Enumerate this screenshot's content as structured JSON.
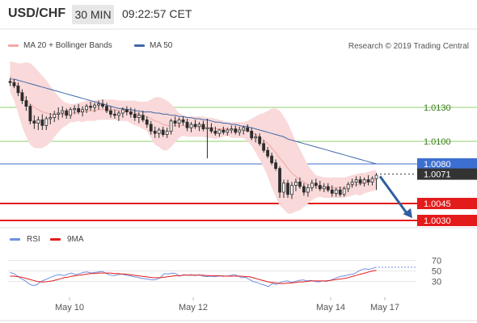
{
  "header": {
    "symbol": "USD/CHF",
    "timeframe": "30 MIN",
    "time": "09:22:57 CET"
  },
  "legend": {
    "ma20_label": "MA 20 + Bollinger Bands",
    "ma50_label": "MA 50",
    "source": "Research © 2019 Trading Central"
  },
  "rsi_legend": {
    "rsi_label": "RSI",
    "ma_label": "9MA"
  },
  "colors": {
    "bollinger_fill": "#f9d9d9",
    "ma20": "#f1a7a7",
    "ma50": "#3f69a8",
    "candle": "#2d2d2d",
    "support": "#e41b1b",
    "current_price": "#333333",
    "pivot": "#3d6fd2",
    "resistance": "#92cf6d",
    "forecast_arrow": "#2f5f9e",
    "rsi": "#6f8fe0",
    "rsi_ma": "#e41b1b"
  },
  "chart_data": [
    {
      "type": "candlestick",
      "title": "USD/CHF 30 MIN",
      "x_labels": [
        "May 10",
        "May 12",
        "May 14",
        "May 17"
      ],
      "y_range": [
        1.0025,
        1.0175
      ],
      "levels": [
        {
          "value": 1.013,
          "label": "1.0130",
          "kind": "resistance"
        },
        {
          "value": 1.01,
          "label": "1.0100",
          "kind": "resistance"
        },
        {
          "value": 1.008,
          "label": "1.0080",
          "kind": "pivot"
        },
        {
          "value": 1.0071,
          "label": "1.0071",
          "kind": "current"
        },
        {
          "value": 1.0045,
          "label": "1.0045",
          "kind": "support"
        },
        {
          "value": 1.003,
          "label": "1.0030",
          "kind": "support"
        }
      ],
      "forecast_arrow": {
        "from": 1.0069,
        "to": 1.0032
      },
      "candles": [
        [
          1.0153,
          1.0156,
          1.0149,
          1.0152
        ],
        [
          1.0152,
          1.0155,
          1.0147,
          1.0149
        ],
        [
          1.0149,
          1.0152,
          1.014,
          1.0143
        ],
        [
          1.0143,
          1.0146,
          1.0133,
          1.0136
        ],
        [
          1.0136,
          1.014,
          1.0127,
          1.0131
        ],
        [
          1.0131,
          1.0133,
          1.0115,
          1.0118
        ],
        [
          1.0118,
          1.0123,
          1.0111,
          1.0116
        ],
        [
          1.0116,
          1.0122,
          1.011,
          1.0119
        ],
        [
          1.0119,
          1.0124,
          1.011,
          1.0114
        ],
        [
          1.0114,
          1.0122,
          1.011,
          1.012
        ],
        [
          1.012,
          1.0125,
          1.0115,
          1.0121
        ],
        [
          1.0121,
          1.0127,
          1.0117,
          1.0124
        ],
        [
          1.0124,
          1.013,
          1.0119,
          1.0125
        ],
        [
          1.0125,
          1.0131,
          1.0121,
          1.0127
        ],
        [
          1.0127,
          1.0129,
          1.012,
          1.0123
        ],
        [
          1.0123,
          1.013,
          1.012,
          1.0128
        ],
        [
          1.0128,
          1.0132,
          1.0124,
          1.0129
        ],
        [
          1.0129,
          1.0133,
          1.0124,
          1.0126
        ],
        [
          1.0126,
          1.0131,
          1.0122,
          1.0128
        ],
        [
          1.0128,
          1.0133,
          1.0125,
          1.0131
        ],
        [
          1.0131,
          1.0135,
          1.0127,
          1.013
        ],
        [
          1.013,
          1.0134,
          1.0126,
          1.0132
        ],
        [
          1.0132,
          1.0136,
          1.0128,
          1.0133
        ],
        [
          1.0133,
          1.0137,
          1.0129,
          1.0131
        ],
        [
          1.0131,
          1.0134,
          1.0125,
          1.0127
        ],
        [
          1.0127,
          1.0131,
          1.0121,
          1.0124
        ],
        [
          1.0124,
          1.0128,
          1.012,
          1.0123
        ],
        [
          1.0123,
          1.0127,
          1.0118,
          1.0125
        ],
        [
          1.0125,
          1.013,
          1.0121,
          1.0128
        ],
        [
          1.0128,
          1.0131,
          1.0123,
          1.0126
        ],
        [
          1.0126,
          1.013,
          1.0121,
          1.0124
        ],
        [
          1.0124,
          1.0129,
          1.0118,
          1.0121
        ],
        [
          1.0121,
          1.0126,
          1.0116,
          1.0123
        ],
        [
          1.0123,
          1.0127,
          1.0117,
          1.0119
        ],
        [
          1.0119,
          1.0122,
          1.0112,
          1.0115
        ],
        [
          1.0115,
          1.0118,
          1.0106,
          1.0109
        ],
        [
          1.0109,
          1.0113,
          1.0103,
          1.0107
        ],
        [
          1.0107,
          1.0112,
          1.0103,
          1.011
        ],
        [
          1.011,
          1.0113,
          1.0104,
          1.0106
        ],
        [
          1.0106,
          1.0112,
          1.0103,
          1.0109
        ],
        [
          1.0109,
          1.012,
          1.0106,
          1.0118
        ],
        [
          1.0118,
          1.0122,
          1.0113,
          1.0116
        ],
        [
          1.0116,
          1.0121,
          1.0112,
          1.0119
        ],
        [
          1.0119,
          1.0122,
          1.0114,
          1.0117
        ],
        [
          1.0117,
          1.012,
          1.0109,
          1.0112
        ],
        [
          1.0112,
          1.0117,
          1.0108,
          1.0115
        ],
        [
          1.0115,
          1.0119,
          1.0111,
          1.0113
        ],
        [
          1.0113,
          1.0117,
          1.0109,
          1.0115
        ],
        [
          1.0115,
          1.0118,
          1.0109,
          1.0111
        ],
        [
          1.0111,
          1.012,
          1.0085,
          1.0112
        ],
        [
          1.0112,
          1.0116,
          1.0107,
          1.0109
        ],
        [
          1.0109,
          1.0113,
          1.0105,
          1.0107
        ],
        [
          1.0107,
          1.0111,
          1.0104,
          1.011
        ],
        [
          1.011,
          1.0113,
          1.0106,
          1.0108
        ],
        [
          1.0108,
          1.0112,
          1.0105,
          1.011
        ],
        [
          1.011,
          1.0114,
          1.0107,
          1.0111
        ],
        [
          1.0111,
          1.0114,
          1.0106,
          1.0108
        ],
        [
          1.0108,
          1.0113,
          1.0105,
          1.011
        ],
        [
          1.011,
          1.0114,
          1.0106,
          1.0112
        ],
        [
          1.0112,
          1.0115,
          1.0108,
          1.0109
        ],
        [
          1.0109,
          1.0112,
          1.0101,
          1.0103
        ],
        [
          1.0103,
          1.0107,
          1.0099,
          1.0104
        ],
        [
          1.0104,
          1.0107,
          1.0096,
          1.0098
        ],
        [
          1.0098,
          1.0101,
          1.009,
          1.0092
        ],
        [
          1.0092,
          1.0095,
          1.0085,
          1.0087
        ],
        [
          1.0087,
          1.009,
          1.0079,
          1.0081
        ],
        [
          1.0081,
          1.0084,
          1.0074,
          1.0076
        ],
        [
          1.0076,
          1.0078,
          1.005,
          1.0055
        ],
        [
          1.0055,
          1.0066,
          1.005,
          1.0063
        ],
        [
          1.0063,
          1.0066,
          1.005,
          1.0053
        ],
        [
          1.0053,
          1.0064,
          1.0049,
          1.0061
        ],
        [
          1.0061,
          1.0067,
          1.0056,
          1.0064
        ],
        [
          1.0064,
          1.0068,
          1.0058,
          1.006
        ],
        [
          1.006,
          1.0063,
          1.0052,
          1.0055
        ],
        [
          1.0055,
          1.0062,
          1.0051,
          1.0059
        ],
        [
          1.0059,
          1.0066,
          1.0056,
          1.0063
        ],
        [
          1.0063,
          1.0067,
          1.0058,
          1.0061
        ],
        [
          1.0061,
          1.0065,
          1.0056,
          1.0058
        ],
        [
          1.0058,
          1.0063,
          1.0055,
          1.006
        ],
        [
          1.006,
          1.0063,
          1.0055,
          1.0057
        ],
        [
          1.0057,
          1.0061,
          1.0051,
          1.0054
        ],
        [
          1.0054,
          1.0059,
          1.0051,
          1.0057
        ],
        [
          1.0057,
          1.006,
          1.0051,
          1.0053
        ],
        [
          1.0053,
          1.006,
          1.0051,
          1.0058
        ],
        [
          1.0058,
          1.0064,
          1.0055,
          1.0062
        ],
        [
          1.0062,
          1.0067,
          1.0059,
          1.0064
        ],
        [
          1.0064,
          1.0069,
          1.006,
          1.0066
        ],
        [
          1.0066,
          1.0069,
          1.0061,
          1.0063
        ],
        [
          1.0063,
          1.0068,
          1.006,
          1.0066
        ],
        [
          1.0066,
          1.007,
          1.0061,
          1.0064
        ],
        [
          1.0064,
          1.0069,
          1.0061,
          1.0067
        ],
        [
          1.0067,
          1.0072,
          1.0057,
          1.007
        ]
      ],
      "ma20": [
        1.0158,
        1.0153,
        1.0147,
        1.0141,
        1.0137,
        1.0133,
        1.013,
        1.0128,
        1.0126,
        1.0125,
        1.0124,
        1.0124,
        1.0124,
        1.0124,
        1.0124,
        1.0125,
        1.0125,
        1.0126,
        1.0126,
        1.0127,
        1.0127,
        1.0127,
        1.0128,
        1.0128,
        1.0128,
        1.0128,
        1.0128,
        1.0127,
        1.0127,
        1.0127,
        1.0126,
        1.0125,
        1.0124,
        1.0123,
        1.0122,
        1.012,
        1.0118,
        1.0117,
        1.0115,
        1.0114,
        1.0114,
        1.0114,
        1.0114,
        1.0114,
        1.0113,
        1.0113,
        1.0113,
        1.0113,
        1.0113,
        1.0112,
        1.0112,
        1.0111,
        1.0111,
        1.0111,
        1.0111,
        1.011,
        1.011,
        1.011,
        1.011,
        1.0109,
        1.0108,
        1.0106,
        1.0104,
        1.0101,
        1.0098,
        1.0094,
        1.009,
        1.0085,
        1.0081,
        1.0076,
        1.0072,
        1.0069,
        1.0066,
        1.0064,
        1.0062,
        1.0061,
        1.006,
        1.006,
        1.0059,
        1.0059,
        1.0059,
        1.0059,
        1.0059,
        1.0059,
        1.006,
        1.0061,
        1.0062,
        1.0062,
        1.0063,
        1.0064,
        1.0065,
        1.0066
      ],
      "ma50": [
        1.0155,
        1.0155,
        1.0154,
        1.0153,
        1.0152,
        1.0151,
        1.015,
        1.0149,
        1.0148,
        1.0147,
        1.0146,
        1.0145,
        1.0144,
        1.0143,
        1.0142,
        1.0141,
        1.014,
        1.0139,
        1.0138,
        1.0137,
        1.0136,
        1.0135,
        1.0134,
        1.0133,
        1.0132,
        1.0131,
        1.013,
        1.0129,
        1.0129,
        1.0128,
        1.0128,
        1.0127,
        1.0127,
        1.0126,
        1.0126,
        1.0126,
        1.0125,
        1.0125,
        1.0124,
        1.0124,
        1.0123,
        1.0123,
        1.0122,
        1.0122,
        1.0121,
        1.0121,
        1.012,
        1.012,
        1.0119,
        1.0119,
        1.0118,
        1.0117,
        1.0117,
        1.0116,
        1.0116,
        1.0115,
        1.0115,
        1.0114,
        1.0113,
        1.0113,
        1.0112,
        1.0111,
        1.011,
        1.0109,
        1.0108,
        1.0107,
        1.0106,
        1.0105,
        1.0104,
        1.0102,
        1.0101,
        1.01,
        1.0099,
        1.0098,
        1.0097,
        1.0096,
        1.0095,
        1.0094,
        1.0093,
        1.0092,
        1.0091,
        1.009,
        1.0089,
        1.0088,
        1.0087,
        1.0086,
        1.0085,
        1.0084,
        1.0083,
        1.0082,
        1.0081,
        1.008
      ],
      "bollinger_upper": [
        1.0171,
        1.017,
        1.0169,
        1.0169,
        1.017,
        1.0169,
        1.0166,
        1.0162,
        1.0158,
        1.0154,
        1.0149,
        1.0144,
        1.014,
        1.0136,
        1.0134,
        1.0133,
        1.0133,
        1.0134,
        1.0135,
        1.0136,
        1.0136,
        1.0136,
        1.0137,
        1.0137,
        1.0137,
        1.0137,
        1.0137,
        1.0136,
        1.0136,
        1.0136,
        1.0136,
        1.0136,
        1.0135,
        1.0135,
        1.0135,
        1.0137,
        1.0139,
        1.0139,
        1.0138,
        1.0136,
        1.0133,
        1.0129,
        1.0125,
        1.0123,
        1.0122,
        1.0122,
        1.0122,
        1.0122,
        1.0122,
        1.0121,
        1.0121,
        1.012,
        1.0119,
        1.0118,
        1.0117,
        1.0117,
        1.0117,
        1.0117,
        1.0117,
        1.0118,
        1.012,
        1.0122,
        1.0124,
        1.0125,
        1.0127,
        1.0129,
        1.0129,
        1.0127,
        1.0122,
        1.0116,
        1.0108,
        1.01,
        1.0093,
        1.0086,
        1.0079,
        1.0074,
        1.007,
        1.0069,
        1.0068,
        1.0068,
        1.0068,
        1.0068,
        1.0068,
        1.0068,
        1.0069,
        1.007,
        1.0071,
        1.0072,
        1.0072,
        1.0073,
        1.0074,
        1.0075
      ],
      "bollinger_lower": [
        1.0144,
        1.0136,
        1.0125,
        1.0113,
        1.0104,
        1.0097,
        1.0094,
        1.0094,
        1.0094,
        1.0096,
        1.0099,
        1.0104,
        1.0108,
        1.0112,
        1.0114,
        1.0117,
        1.0117,
        1.0118,
        1.0117,
        1.0118,
        1.0118,
        1.0118,
        1.0119,
        1.0119,
        1.0119,
        1.0119,
        1.0119,
        1.0118,
        1.0118,
        1.0118,
        1.0116,
        1.0114,
        1.0113,
        1.0111,
        1.0109,
        1.0103,
        1.0097,
        1.0095,
        1.0092,
        1.0092,
        1.0095,
        1.0099,
        1.0103,
        1.0105,
        1.0104,
        1.0104,
        1.0104,
        1.0104,
        1.0104,
        1.0103,
        1.0103,
        1.0102,
        1.0103,
        1.0104,
        1.0105,
        1.0103,
        1.0103,
        1.0103,
        1.0103,
        1.01,
        1.0096,
        1.009,
        1.0084,
        1.0077,
        1.0069,
        1.0059,
        1.0051,
        1.0043,
        1.004,
        1.0036,
        1.0036,
        1.0038,
        1.0039,
        1.0042,
        1.0045,
        1.0048,
        1.005,
        1.0051,
        1.005,
        1.005,
        1.005,
        1.005,
        1.005,
        1.005,
        1.0051,
        1.0052,
        1.0053,
        1.0052,
        1.0054,
        1.0055,
        1.0056,
        1.0057
      ]
    },
    {
      "type": "line",
      "title": "RSI",
      "y_range": [
        0,
        100
      ],
      "y_ticks": [
        30,
        50,
        70
      ],
      "y_tick_labels": [
        "30",
        "50",
        "70"
      ],
      "series": [
        {
          "name": "RSI",
          "values": [
            47,
            45,
            40,
            35,
            31,
            25,
            22,
            24,
            30,
            33,
            36,
            39,
            42,
            43,
            41,
            44,
            46,
            43,
            45,
            47,
            48,
            46,
            47,
            48,
            49,
            45,
            42,
            41,
            43,
            44,
            42,
            41,
            39,
            38,
            36,
            35,
            34,
            33,
            34,
            37,
            45,
            44,
            46,
            45,
            40,
            43,
            42,
            43,
            41,
            43,
            40,
            39,
            40,
            39,
            40,
            41,
            40,
            41,
            43,
            41,
            37,
            38,
            34,
            30,
            28,
            25,
            23,
            20,
            26,
            24,
            28,
            30,
            31,
            28,
            30,
            32,
            33,
            31,
            32,
            30,
            29,
            31,
            30,
            32,
            35,
            38,
            40,
            41,
            43,
            44,
            48,
            52,
            54,
            53,
            55,
            57
          ]
        },
        {
          "name": "9MA",
          "values": [
            40,
            40,
            39,
            38,
            36,
            34,
            32,
            30,
            29,
            29,
            30,
            31,
            33,
            35,
            37,
            38,
            40,
            41,
            42,
            43,
            44,
            45,
            45,
            46,
            46,
            46,
            46,
            45,
            45,
            44,
            44,
            43,
            42,
            41,
            40,
            39,
            38,
            37,
            37,
            37,
            38,
            39,
            40,
            41,
            41,
            42,
            42,
            42,
            42,
            42,
            42,
            41,
            41,
            41,
            41,
            40,
            40,
            40,
            40,
            40,
            40,
            39,
            39,
            37,
            35,
            33,
            31,
            29,
            28,
            27,
            26,
            26,
            27,
            27,
            28,
            29,
            29,
            30,
            31,
            31,
            31,
            31,
            31,
            32,
            33,
            34,
            35,
            36,
            38,
            40,
            42,
            44,
            46,
            48,
            50,
            51
          ]
        }
      ]
    }
  ]
}
